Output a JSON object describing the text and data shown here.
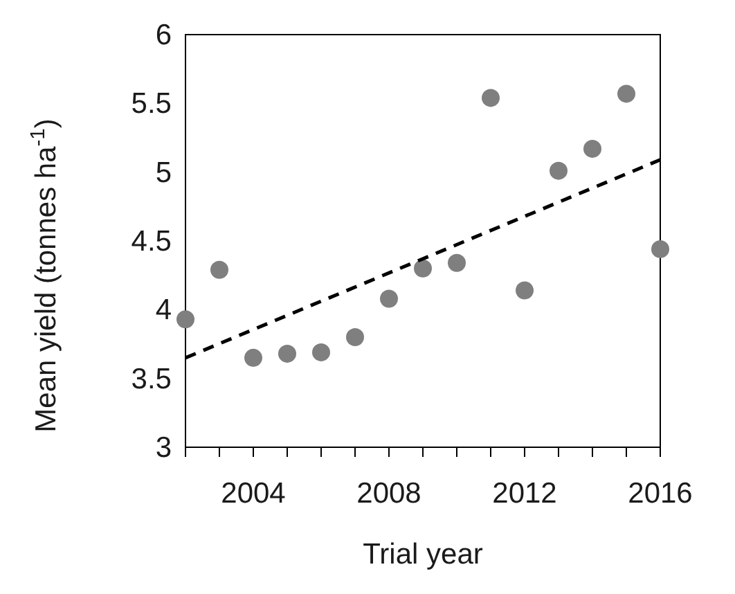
{
  "chart_data": {
    "type": "scatter",
    "xlabel": "Trial year",
    "ylabel": "Mean yield (tonnes ha$^{-1}$)",
    "xlim": [
      2002,
      2016
    ],
    "ylim": [
      3,
      6
    ],
    "xticks": [
      {
        "value": 2002,
        "label": null
      },
      {
        "value": 2003,
        "label": null
      },
      2004,
      {
        "value": 2005,
        "label": null
      },
      {
        "value": 2006,
        "label": null
      },
      {
        "value": 2007,
        "label": null
      },
      2008,
      {
        "value": 2009,
        "label": null
      },
      {
        "value": 2010,
        "label": null
      },
      {
        "value": 2011,
        "label": null
      },
      2012,
      {
        "value": 2013,
        "label": null
      },
      {
        "value": 2014,
        "label": null
      },
      {
        "value": 2015,
        "label": null
      },
      2016
    ],
    "yticks": [
      3,
      3.5,
      4,
      4.5,
      5,
      5.5,
      6
    ],
    "grid": false,
    "series": [
      {
        "color": "#7f7f7f",
        "marker": "circle",
        "x": [
          2002,
          2003,
          2004,
          2005,
          2006,
          2007,
          2008,
          2009,
          2010,
          2011,
          2012,
          2013,
          2014,
          2015,
          2016
        ],
        "values": [
          3.93,
          4.29,
          3.65,
          3.68,
          3.69,
          3.8,
          4.08,
          4.3,
          4.34,
          5.54,
          4.14,
          5.01,
          5.17,
          5.57,
          4.44
        ]
      },
      {
        "type": "line",
        "color": "#000000",
        "line_style": "dashed",
        "x": [
          2002,
          2016
        ],
        "values": [
          3.65,
          5.09
        ]
      }
    ]
  }
}
